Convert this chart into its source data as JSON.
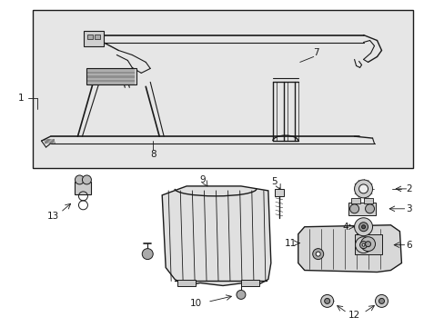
{
  "bg_color": "#f2f2f2",
  "box_bg": "#e8e8e8",
  "white": "#ffffff",
  "lc": "#1a1a1a",
  "gray1": "#aaaaaa",
  "gray2": "#cccccc",
  "gray3": "#888888",
  "figsize": [
    4.89,
    3.6
  ],
  "dpi": 100
}
